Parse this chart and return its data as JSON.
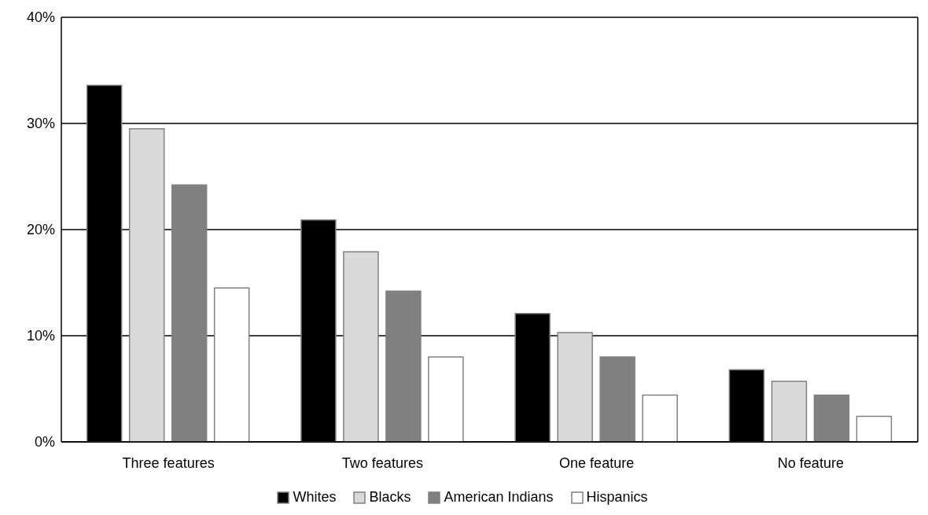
{
  "chart_data": {
    "type": "bar",
    "categories": [
      "Three features",
      "Two features",
      "One feature",
      "No feature"
    ],
    "series": [
      {
        "name": "Whites",
        "color": "#000000",
        "values": [
          33.6,
          20.9,
          12.1,
          6.8
        ]
      },
      {
        "name": "Blacks",
        "color": "#d9d9d9",
        "values": [
          29.5,
          17.9,
          10.3,
          5.7
        ]
      },
      {
        "name": "American Indians",
        "color": "#808080",
        "values": [
          24.2,
          14.2,
          8.0,
          4.4
        ]
      },
      {
        "name": "Hispanics",
        "color": "#ffffff",
        "values": [
          14.5,
          8.0,
          4.4,
          2.4
        ]
      }
    ],
    "ylim": [
      0,
      40
    ],
    "yticks": [
      {
        "value": 0,
        "label": "0%"
      },
      {
        "value": 10,
        "label": "10%"
      },
      {
        "value": 20,
        "label": "20%"
      },
      {
        "value": 30,
        "label": "30%"
      },
      {
        "value": 40,
        "label": "40%"
      }
    ],
    "grid": "y",
    "legend": "bottom"
  }
}
